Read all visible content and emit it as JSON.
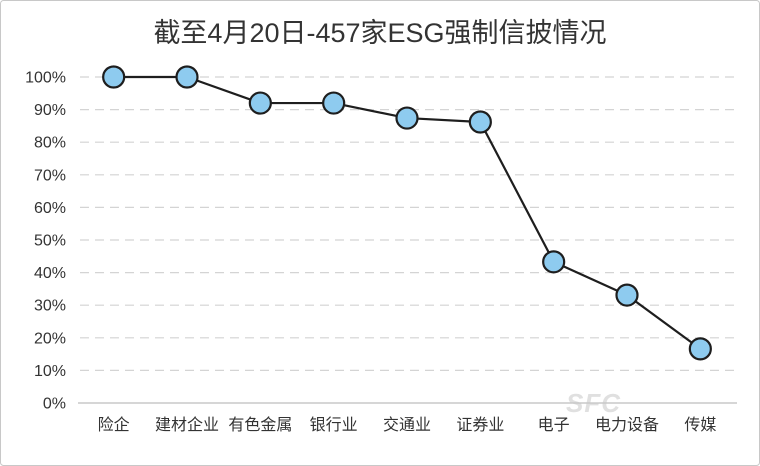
{
  "chart_data": {
    "type": "line",
    "title": "截至4月20日-457家ESG强制信披情况",
    "categories": [
      "险企",
      "建材企业",
      "有色金属",
      "银行业",
      "交通业",
      "证券业",
      "电子",
      "电力设备",
      "传媒"
    ],
    "series": [
      {
        "values": [
          100,
          100,
          92,
          92,
          87.4,
          86.2,
          43.3,
          33.1,
          16.6
        ]
      }
    ],
    "ylim": [
      0,
      100
    ],
    "yticks": [
      0,
      10,
      20,
      30,
      40,
      50,
      60,
      70,
      80,
      90,
      100
    ],
    "ytick_labels": [
      "0%",
      "10%",
      "20%",
      "30%",
      "40%",
      "50%",
      "60%",
      "70%",
      "80%",
      "90%",
      "100%"
    ],
    "grid": true,
    "colors": {
      "line": "#1e1e1e",
      "marker_fill": "#8ecbef",
      "marker_stroke": "#1e1e1e",
      "grid": "#d4d4d4",
      "axis": "#bdbdbd",
      "frame": "#c8c8c8"
    }
  },
  "watermark": {
    "text": "SFC"
  }
}
